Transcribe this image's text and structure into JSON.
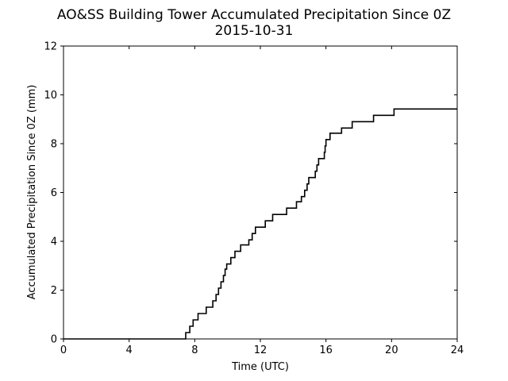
{
  "chart_data": {
    "type": "line",
    "title": "AO&SS Building Tower Accumulated Precipitation Since 0Z",
    "subtitle": "2015-10-31",
    "xlabel": "Time (UTC)",
    "ylabel": "Accumulated Precipitation Since 0Z (mm)",
    "xlim": [
      0,
      24
    ],
    "ylim": [
      0,
      12
    ],
    "xticks": [
      0,
      4,
      8,
      12,
      16,
      20,
      24
    ],
    "yticks": [
      0,
      2,
      4,
      6,
      8,
      10,
      12
    ],
    "grid": false,
    "legend": "none",
    "step": true,
    "line_color": "#000000",
    "series": [
      {
        "x": [
          0,
          7.45,
          7.7,
          7.9,
          8.2,
          8.7,
          9.1,
          9.3,
          9.45,
          9.6,
          9.75,
          9.85,
          9.95,
          10.2,
          10.45,
          10.8,
          11.3,
          11.5,
          11.7,
          12.3,
          12.75,
          13.6,
          14.2,
          14.5,
          14.7,
          14.85,
          14.95,
          15.35,
          15.45,
          15.55,
          15.65,
          15.9,
          15.95,
          16.0,
          16.05,
          16.25,
          16.95,
          17.6,
          18.9,
          20.15,
          24
        ],
        "y": [
          0,
          0.26,
          0.52,
          0.78,
          1.04,
          1.3,
          1.56,
          1.82,
          2.08,
          2.34,
          2.6,
          2.86,
          3.07,
          3.33,
          3.59,
          3.85,
          4.06,
          4.32,
          4.58,
          4.84,
          5.1,
          5.36,
          5.62,
          5.83,
          6.09,
          6.35,
          6.61,
          6.87,
          7.13,
          7.39,
          7.39,
          7.65,
          7.91,
          8.17,
          8.17,
          8.43,
          8.64,
          8.9,
          9.16,
          9.42,
          9.42
        ]
      }
    ]
  }
}
